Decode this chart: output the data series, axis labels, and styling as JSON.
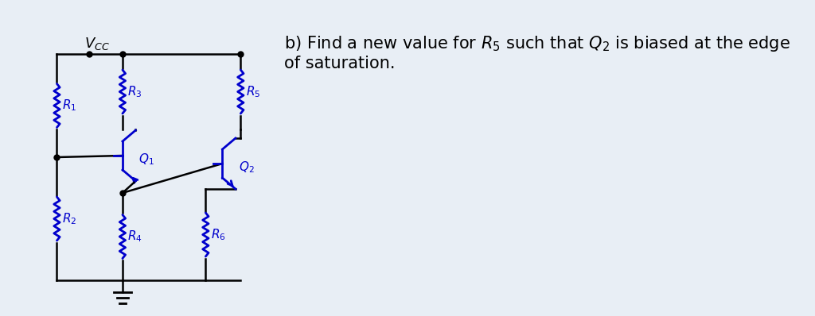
{
  "bg_color": "#e8eef5",
  "circuit_color": "#0000cc",
  "wire_color": "#000000",
  "text_color": "#000000",
  "title_text": "b) Find a new value for $R_5$ such that $Q_2$ is biased at the edge\nof saturation.",
  "title_fontsize": 15,
  "vcc_label": "$V_{CC}$",
  "labels": {
    "R1": "$R_1$",
    "R2": "$R_2$",
    "R3": "$R_3$",
    "R4": "$R_4$",
    "R5": "$R_5$",
    "R6": "$R_6$",
    "Q1": "$Q_1$",
    "Q2": "$Q_2$"
  },
  "label_color": "#8B4513"
}
